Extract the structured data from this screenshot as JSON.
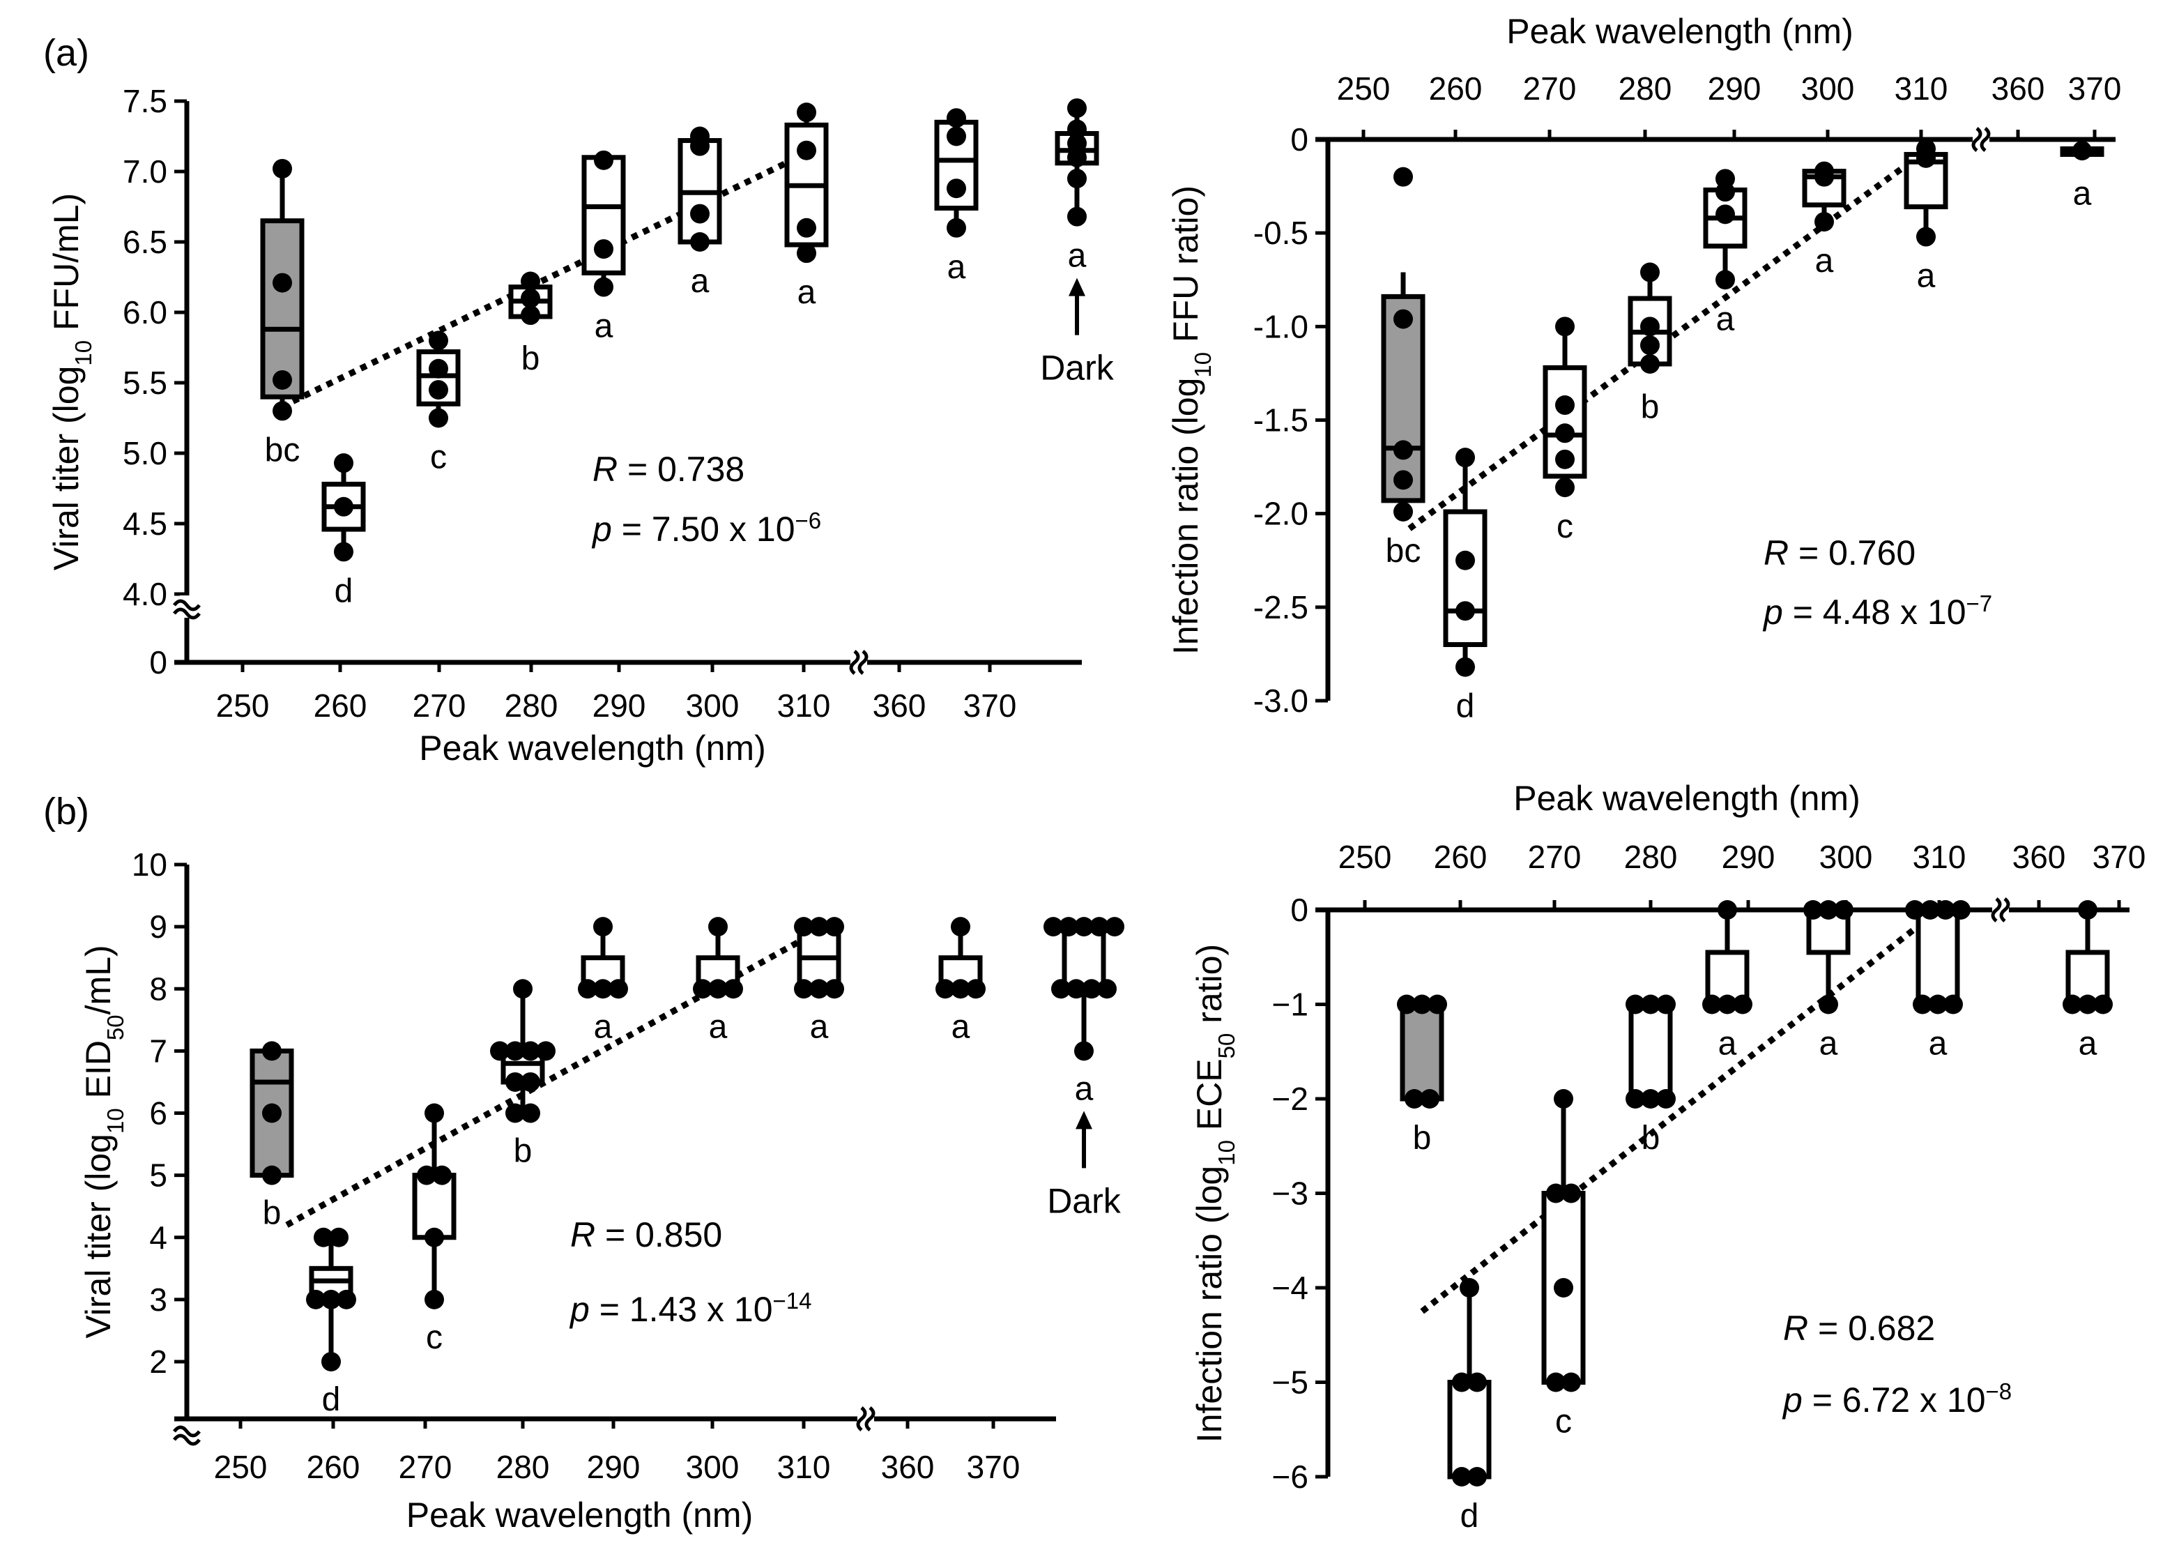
{
  "figure": {
    "panel_labels": [
      "(a)",
      "(b)"
    ],
    "dark_label": "Dark",
    "axis_break_symbol": "≈"
  },
  "chart_data": [
    {
      "id": "a_left",
      "type": "box",
      "xlabel": "Peak wavelength (nm)",
      "ylabel_parts": [
        "Viral titer (log",
        "10",
        " FFU/mL)"
      ],
      "ylim": [
        4.0,
        7.5
      ],
      "yticks": [
        "7.5",
        "7.0",
        "6.5",
        "6.0",
        "5.5",
        "5.0",
        "4.5",
        "4.0"
      ],
      "ytick_values": [
        7.5,
        7.0,
        6.5,
        6.0,
        5.5,
        5.0,
        4.5,
        4.0
      ],
      "zero_tick": "0",
      "categories": [
        "250",
        "260",
        "270",
        "280",
        "290",
        "300",
        "310",
        "360",
        "370"
      ],
      "groups": [
        {
          "category": "254",
          "shaded": true,
          "q1": 5.4,
          "median": 5.88,
          "q3": 6.65,
          "min": 5.3,
          "max": 7.02,
          "points": [
            7.02,
            6.21,
            5.52,
            5.3
          ],
          "letter": "bc"
        },
        {
          "category": "262",
          "shaded": false,
          "q1": 4.46,
          "median": 4.62,
          "q3": 4.78,
          "min": 4.3,
          "max": 4.93,
          "points": [
            4.93,
            4.62,
            4.3
          ],
          "letter": "d"
        },
        {
          "category": "271",
          "shaded": false,
          "q1": 5.35,
          "median": 5.55,
          "q3": 5.72,
          "min": 5.25,
          "max": 5.8,
          "points": [
            5.8,
            5.6,
            5.45,
            5.25
          ],
          "letter": "c"
        },
        {
          "category": "280",
          "shaded": false,
          "q1": 5.97,
          "median": 6.08,
          "q3": 6.18,
          "min": 5.95,
          "max": 6.22,
          "points": [
            6.22,
            6.1,
            5.98
          ],
          "letter": "b"
        },
        {
          "category": "289",
          "shaded": false,
          "q1": 6.28,
          "median": 6.75,
          "q3": 7.1,
          "min": 6.18,
          "max": 7.1,
          "points": [
            7.08,
            6.45,
            6.18
          ],
          "letter": "a"
        },
        {
          "category": "300",
          "shaded": false,
          "q1": 6.5,
          "median": 6.85,
          "q3": 7.22,
          "min": 6.5,
          "max": 7.25,
          "points": [
            7.25,
            7.18,
            6.7,
            6.5
          ],
          "letter": "a"
        },
        {
          "category": "310",
          "shaded": false,
          "q1": 6.48,
          "median": 6.9,
          "q3": 7.33,
          "min": 6.42,
          "max": 7.42,
          "points": [
            7.42,
            7.15,
            6.6,
            6.42
          ],
          "letter": "a"
        },
        {
          "category": "365",
          "shaded": false,
          "q1": 6.74,
          "median": 7.08,
          "q3": 7.35,
          "min": 6.6,
          "max": 7.38,
          "points": [
            7.38,
            7.25,
            6.88,
            6.6
          ],
          "letter": "a"
        },
        {
          "category": "Dark",
          "shaded": false,
          "q1": 7.06,
          "median": 7.15,
          "q3": 7.27,
          "min": 6.68,
          "max": 7.45,
          "points": [
            7.45,
            7.3,
            7.2,
            7.1,
            6.95,
            6.68
          ],
          "letter": "a"
        }
      ],
      "trend": {
        "from": [
          254,
          5.33
        ],
        "to": [
          310,
          7.12
        ]
      },
      "stats": {
        "r_symbol": "R",
        "r_value": " = 0.738",
        "p_symbol": "p",
        "p_value": " = 7.50 x 10",
        "p_exponent": "−6"
      }
    },
    {
      "id": "a_right",
      "type": "box",
      "xlabel": "Peak wavelength (nm)",
      "ylabel_parts": [
        "Infection ratio (log",
        "10",
        " FFU ratio)"
      ],
      "ylim": [
        -3.0,
        0
      ],
      "yticks": [
        "0",
        "-0.5",
        "-1.0",
        "-1.5",
        "-2.0",
        "-2.5",
        "-3.0"
      ],
      "ytick_values": [
        0,
        -0.5,
        -1.0,
        -1.5,
        -2.0,
        -2.5,
        -3.0
      ],
      "categories": [
        "250",
        "260",
        "270",
        "280",
        "290",
        "300",
        "310",
        "360",
        "370"
      ],
      "groups": [
        {
          "category": "254",
          "shaded": true,
          "q1": -1.93,
          "median": -1.65,
          "q3": -0.84,
          "min": -1.99,
          "max": -0.71,
          "points": [
            -0.2,
            -0.96,
            -1.66,
            -1.82,
            -1.99
          ],
          "letter": "bc"
        },
        {
          "category": "262",
          "shaded": false,
          "q1": -2.7,
          "median": -2.52,
          "q3": -1.99,
          "min": -2.82,
          "max": -1.7,
          "points": [
            -1.7,
            -2.25,
            -2.52,
            -2.82
          ],
          "letter": "d"
        },
        {
          "category": "271",
          "shaded": false,
          "q1": -1.8,
          "median": -1.58,
          "q3": -1.22,
          "min": -1.86,
          "max": -1.0,
          "points": [
            -1.0,
            -1.42,
            -1.57,
            -1.71,
            -1.86
          ],
          "letter": "c"
        },
        {
          "category": "280",
          "shaded": false,
          "q1": -1.2,
          "median": -1.03,
          "q3": -0.85,
          "min": -1.22,
          "max": -0.71,
          "points": [
            -0.71,
            -1.0,
            -1.1,
            -1.2
          ],
          "letter": "b"
        },
        {
          "category": "289",
          "shaded": false,
          "q1": -0.57,
          "median": -0.42,
          "q3": -0.27,
          "min": -0.75,
          "max": -0.21,
          "points": [
            -0.21,
            -0.28,
            -0.4,
            -0.75
          ],
          "letter": "a"
        },
        {
          "category": "300",
          "shaded": false,
          "q1": -0.35,
          "median": -0.2,
          "q3": -0.17,
          "min": -0.44,
          "max": -0.17,
          "points": [
            -0.17,
            -0.2,
            -0.44
          ],
          "letter": "a"
        },
        {
          "category": "310",
          "shaded": false,
          "q1": -0.36,
          "median": -0.12,
          "q3": -0.08,
          "min": -0.52,
          "max": -0.02,
          "points": [
            -0.05,
            -0.1,
            -0.52
          ],
          "letter": "a"
        },
        {
          "category": "365",
          "shaded": false,
          "q1": -0.08,
          "median": -0.06,
          "q3": -0.05,
          "min": -0.08,
          "max": -0.05,
          "points": [
            -0.06
          ],
          "letter": "a"
        }
      ],
      "trend": {
        "from": [
          255,
          -2.08
        ],
        "to": [
          310,
          -0.08
        ]
      },
      "stats": {
        "r_symbol": "R",
        "r_value": " = 0.760",
        "p_symbol": "p",
        "p_value": " = 4.48 x 10",
        "p_exponent": "−7"
      }
    },
    {
      "id": "b_left",
      "type": "box",
      "xlabel": "Peak wavelength (nm)",
      "ylabel_parts": [
        "Viral titer (log",
        "10",
        " EID",
        "50",
        "/mL)"
      ],
      "ylim": [
        2,
        10
      ],
      "yticks": [
        "10",
        "9",
        "8",
        "7",
        "6",
        "5",
        "4",
        "3",
        "2"
      ],
      "ytick_values": [
        10,
        9,
        8,
        7,
        6,
        5,
        4,
        3,
        2
      ],
      "categories": [
        "250",
        "260",
        "270",
        "280",
        "290",
        "300",
        "310",
        "360",
        "370"
      ],
      "groups": [
        {
          "category": "254",
          "shaded": true,
          "q1": 5.0,
          "median": 6.5,
          "q3": 7.0,
          "min": 5.0,
          "max": 7.0,
          "points": [
            7.0,
            6.0,
            5.0
          ],
          "letter": "b"
        },
        {
          "category": "262",
          "shaded": false,
          "q1": 3.0,
          "median": 3.3,
          "q3": 3.5,
          "min": 2.0,
          "max": 4.0,
          "points": [
            4.0,
            4.0,
            3.0,
            3.0,
            3.0,
            2.0
          ],
          "letter": "d"
        },
        {
          "category": "271",
          "shaded": false,
          "q1": 4.0,
          "median": 5.0,
          "q3": 5.0,
          "min": 3.0,
          "max": 6.0,
          "points": [
            6.0,
            5.0,
            5.0,
            4.0,
            3.0
          ],
          "letter": "c"
        },
        {
          "category": "280",
          "shaded": false,
          "q1": 6.5,
          "median": 6.8,
          "q3": 7.0,
          "min": 6.0,
          "max": 8.0,
          "points": [
            8.0,
            7.0,
            7.0,
            7.0,
            7.0,
            6.5,
            6.5,
            6.0,
            6.0
          ],
          "letter": "b"
        },
        {
          "category": "289",
          "shaded": false,
          "q1": 8.0,
          "median": 8.0,
          "q3": 8.5,
          "min": 8.0,
          "max": 9.0,
          "points": [
            9.0,
            8.0,
            8.0,
            8.0
          ],
          "letter": "a"
        },
        {
          "category": "300",
          "shaded": false,
          "q1": 8.0,
          "median": 8.0,
          "q3": 8.5,
          "min": 8.0,
          "max": 9.0,
          "points": [
            9.0,
            8.0,
            8.0,
            8.0
          ],
          "letter": "a"
        },
        {
          "category": "310",
          "shaded": false,
          "q1": 8.0,
          "median": 8.5,
          "q3": 9.0,
          "min": 8.0,
          "max": 9.0,
          "points": [
            9.0,
            9.0,
            9.0,
            8.0,
            8.0,
            8.0
          ],
          "letter": "a"
        },
        {
          "category": "365",
          "shaded": false,
          "q1": 8.0,
          "median": 8.0,
          "q3": 8.5,
          "min": 8.0,
          "max": 9.0,
          "points": [
            9.0,
            8.0,
            8.0,
            8.0
          ],
          "letter": "a"
        },
        {
          "category": "Dark",
          "shaded": false,
          "q1": 8.0,
          "median": 9.0,
          "q3": 9.0,
          "min": 7.0,
          "max": 9.0,
          "points": [
            9.0,
            9.0,
            9.0,
            9.0,
            9.0,
            8.0,
            8.0,
            8.0,
            8.0,
            7.0
          ],
          "letter": "a"
        }
      ],
      "trend": {
        "from": [
          255,
          4.2
        ],
        "to": [
          310,
          8.8
        ]
      },
      "stats": {
        "r_symbol": "R",
        "r_value": " = 0.850",
        "p_symbol": "p",
        "p_value": " = 1.43 x 10",
        "p_exponent": "−14"
      }
    },
    {
      "id": "b_right",
      "type": "box",
      "xlabel": "Peak wavelength (nm)",
      "ylabel_parts": [
        "Infection ratio (log",
        "10",
        " ECE",
        "50",
        " ratio)"
      ],
      "ylim": [
        -6,
        0
      ],
      "yticks": [
        "0",
        "−1",
        "−2",
        "−3",
        "−4",
        "−5",
        "−6"
      ],
      "ytick_values": [
        0,
        -1,
        -2,
        -3,
        -4,
        -5,
        -6
      ],
      "categories": [
        "250",
        "260",
        "270",
        "280",
        "290",
        "300",
        "310",
        "360",
        "370"
      ],
      "groups": [
        {
          "category": "254",
          "shaded": true,
          "q1": -2.0,
          "median": -1.0,
          "q3": -1.0,
          "min": -2.0,
          "max": -1.0,
          "points": [
            -1.0,
            -1.0,
            -1.0,
            -2.0,
            -2.0
          ],
          "letter": "b"
        },
        {
          "category": "262",
          "shaded": false,
          "q1": -6.0,
          "median": -5.0,
          "q3": -5.0,
          "min": -6.0,
          "max": -4.0,
          "points": [
            -4.0,
            -5.0,
            -5.0,
            -6.0,
            -6.0
          ],
          "letter": "d"
        },
        {
          "category": "271",
          "shaded": false,
          "q1": -5.0,
          "median": -3.0,
          "q3": -3.0,
          "min": -5.0,
          "max": -2.0,
          "points": [
            -2.0,
            -3.0,
            -3.0,
            -4.0,
            -5.0,
            -5.0
          ],
          "letter": "c"
        },
        {
          "category": "280",
          "shaded": false,
          "q1": -2.0,
          "median": -1.0,
          "q3": -1.0,
          "min": -2.0,
          "max": -1.0,
          "points": [
            -1.0,
            -1.0,
            -1.0,
            -2.0,
            -2.0,
            -2.0
          ],
          "letter": "b"
        },
        {
          "category": "289",
          "shaded": false,
          "q1": -1.0,
          "median": -1.0,
          "q3": -0.45,
          "min": -1.0,
          "max": 0.0,
          "points": [
            0.0,
            -1.0,
            -1.0,
            -1.0
          ],
          "letter": "a"
        },
        {
          "category": "300",
          "shaded": false,
          "q1": -0.45,
          "median": 0.0,
          "q3": 0.0,
          "min": -1.0,
          "max": 0.0,
          "points": [
            0.0,
            0.0,
            0.0,
            -1.0
          ],
          "letter": "a"
        },
        {
          "category": "310",
          "shaded": false,
          "q1": -1.0,
          "median": 0.0,
          "q3": 0.0,
          "min": -1.0,
          "max": 0.0,
          "points": [
            0.0,
            0.0,
            0.0,
            0.0,
            -1.0,
            -1.0,
            -1.0
          ],
          "letter": "a"
        },
        {
          "category": "365",
          "shaded": false,
          "q1": -1.0,
          "median": -1.0,
          "q3": -0.45,
          "min": -1.0,
          "max": 0.0,
          "points": [
            0.0,
            -1.0,
            -1.0,
            -1.0
          ],
          "letter": "a"
        }
      ],
      "trend": {
        "from": [
          256,
          -4.25
        ],
        "to": [
          310,
          0.0
        ]
      },
      "stats": {
        "r_symbol": "R",
        "r_value": " = 0.682",
        "p_symbol": "p",
        "p_value": " = 6.72 x 10",
        "p_exponent": "−8"
      }
    }
  ]
}
